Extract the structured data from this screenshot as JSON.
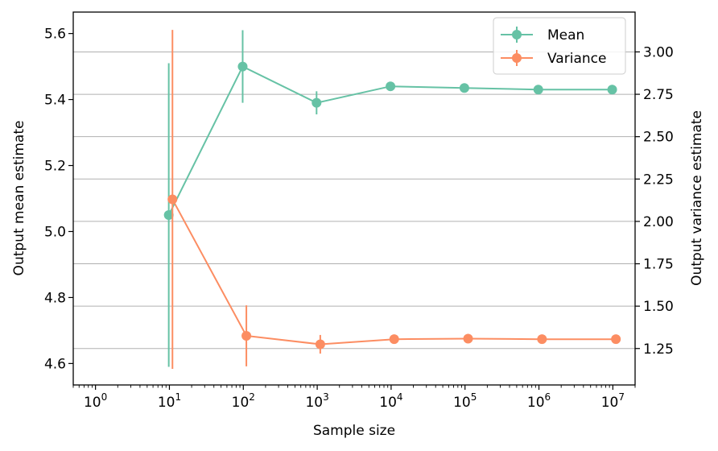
{
  "chart_data": {
    "type": "line",
    "xlabel": "Sample size",
    "x_scale": "log",
    "x": [
      10,
      100,
      1000,
      10000,
      100000,
      1000000,
      10000000
    ],
    "x_ticks": [
      {
        "value": 1,
        "base": "10",
        "exp": "0"
      },
      {
        "value": 10,
        "base": "10",
        "exp": "1"
      },
      {
        "value": 100,
        "base": "10",
        "exp": "2"
      },
      {
        "value": 1000,
        "base": "10",
        "exp": "3"
      },
      {
        "value": 10000,
        "base": "10",
        "exp": "4"
      },
      {
        "value": 100000,
        "base": "10",
        "exp": "5"
      },
      {
        "value": 1000000,
        "base": "10",
        "exp": "6"
      },
      {
        "value": 10000000,
        "base": "10",
        "exp": "7"
      }
    ],
    "xlim": [
      0.5,
      20000000
    ],
    "y_left": {
      "label": "Output mean estimate",
      "lim": [
        4.535,
        5.665
      ],
      "ticks": [
        "4.6",
        "4.8",
        "5.0",
        "5.2",
        "5.4",
        "5.6"
      ]
    },
    "y_right": {
      "label": "Output variance estimate",
      "lim": [
        1.035,
        3.235
      ],
      "ticks": [
        "1.25",
        "1.50",
        "1.75",
        "2.00",
        "2.25",
        "2.50",
        "2.75",
        "3.00"
      ],
      "grid": true
    },
    "series": [
      {
        "name": "Mean",
        "axis": "left",
        "color": "#66c2a5",
        "values": [
          5.05,
          5.5,
          5.39,
          5.44,
          5.435,
          5.43,
          5.43
        ],
        "error": [
          0.46,
          0.11,
          0.035,
          0.004,
          0.002,
          0.001,
          0.0005
        ],
        "x_offset": 0.98
      },
      {
        "name": "Variance",
        "axis": "right",
        "color": "#fc8d62",
        "values": [
          2.13,
          1.325,
          1.275,
          1.305,
          1.308,
          1.305,
          1.305
        ],
        "error": [
          1.0,
          0.18,
          0.055,
          0.006,
          0.003,
          0.001,
          0.0005
        ],
        "x_offset": 1.1
      }
    ],
    "legend_position": "top-right"
  }
}
